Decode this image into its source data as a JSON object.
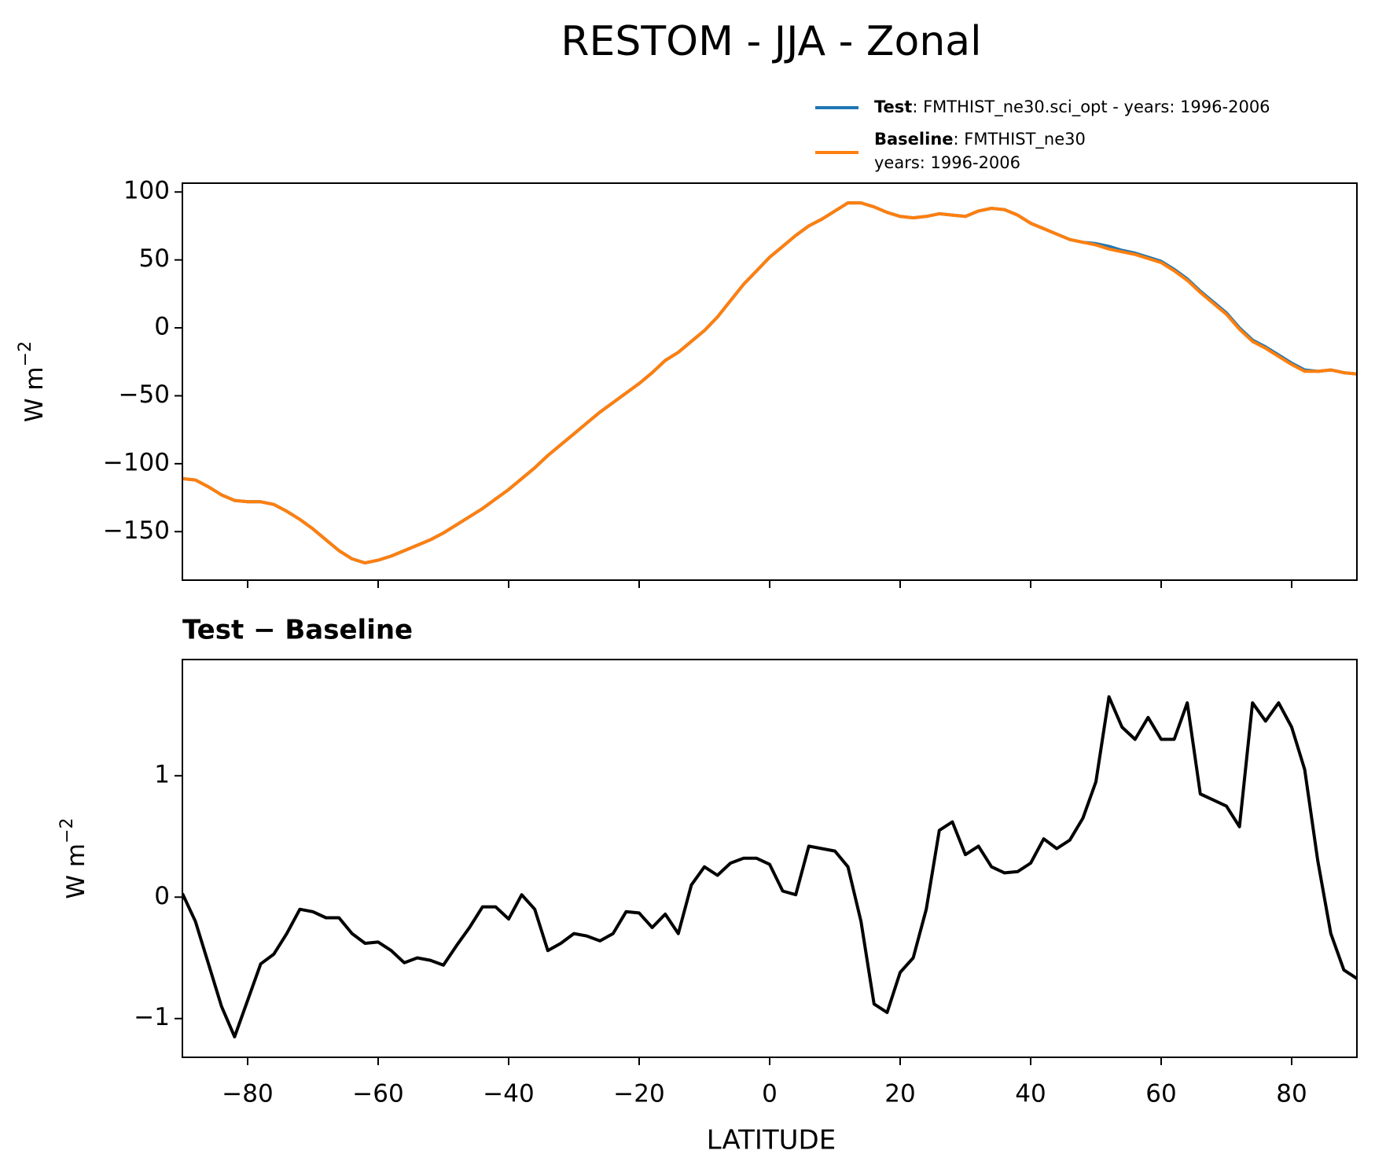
{
  "chart_data": [
    {
      "type": "line",
      "title": "RESTOM - JJA - Zonal",
      "ylabel": "W m",
      "ylabel_exponent": "−2",
      "legend_labels": [
        [
          ": FMTHIST_ne30.sci_opt - years: 1996-2006"
        ],
        [
          ": FMTHIST_ne30",
          "years: 1996-2006"
        ]
      ],
      "x": [
        -90,
        -88,
        -86,
        -84,
        -82,
        -80,
        -78,
        -76,
        -74,
        -72,
        -70,
        -68,
        -66,
        -64,
        -62,
        -60,
        -58,
        -56,
        -54,
        -52,
        -50,
        -48,
        -46,
        -44,
        -42,
        -40,
        -38,
        -36,
        -34,
        -32,
        -30,
        -28,
        -26,
        -24,
        -22,
        -20,
        -18,
        -16,
        -14,
        -12,
        -10,
        -8,
        -6,
        -4,
        -2,
        0,
        2,
        4,
        6,
        8,
        10,
        12,
        14,
        16,
        18,
        20,
        22,
        24,
        26,
        28,
        30,
        32,
        34,
        36,
        38,
        40,
        42,
        44,
        46,
        48,
        50,
        52,
        54,
        56,
        58,
        60,
        62,
        64,
        66,
        68,
        70,
        72,
        74,
        76,
        78,
        80,
        82,
        84,
        86,
        88,
        90
      ],
      "series": [
        {
          "name": "Test",
          "color": "#1f77b4",
          "values": [
            -111,
            -112,
            -117,
            -123,
            -127,
            -128,
            -128,
            -130,
            -135,
            -141,
            -148,
            -156,
            -164,
            -170,
            -173,
            -171,
            -168,
            -164,
            -160,
            -156,
            -151,
            -145,
            -139,
            -133,
            -126,
            -119,
            -111,
            -103,
            -94,
            -86,
            -78,
            -70,
            -62,
            -55,
            -48,
            -41,
            -33,
            -24,
            -18,
            -10,
            -2,
            8,
            20,
            32,
            42,
            52,
            60,
            68,
            75,
            80,
            86,
            92,
            92,
            89,
            85,
            82,
            81,
            82,
            84,
            83,
            82,
            86,
            88,
            87,
            83,
            77,
            73,
            69,
            65,
            63,
            62,
            60,
            57,
            55,
            52,
            49,
            43,
            36,
            27,
            19,
            11,
            0,
            -9,
            -14,
            -20,
            -26,
            -31,
            -32,
            -31,
            -33,
            -34
          ]
        },
        {
          "name": "Baseline",
          "color": "#ff7f0e",
          "values": [
            -111,
            -112,
            -117,
            -123,
            -127,
            -128,
            -128,
            -130,
            -135,
            -141,
            -148,
            -156,
            -164,
            -170,
            -173,
            -171,
            -168,
            -164,
            -160,
            -156,
            -151,
            -145,
            -139,
            -133,
            -126,
            -119,
            -111,
            -103,
            -94,
            -86,
            -78,
            -70,
            -62,
            -55,
            -48,
            -41,
            -33,
            -24,
            -18,
            -10,
            -2,
            8,
            20,
            32,
            42,
            52,
            60,
            68,
            75,
            80,
            86,
            92,
            92,
            89,
            85,
            82,
            81,
            82,
            84,
            83,
            82,
            86,
            88,
            87,
            83,
            77,
            73,
            69,
            65,
            63,
            61,
            58,
            56,
            54,
            51,
            48,
            42,
            35,
            26,
            18,
            10,
            -1,
            -10,
            -15,
            -21,
            -27,
            -32,
            -32,
            -31,
            -33,
            -34
          ]
        }
      ],
      "xlim": [
        -90,
        90
      ],
      "xticks": [
        -80,
        -60,
        -40,
        -20,
        0,
        20,
        40,
        60,
        80
      ],
      "ylim": [
        -185.7,
        106.5
      ],
      "yticks": [
        {
          "value": -150,
          "label": "−150"
        },
        {
          "value": -100,
          "label": "−100"
        },
        {
          "value": -50,
          "label": "−50"
        },
        0,
        50,
        100
      ],
      "legend": "upper right"
    },
    {
      "type": "line",
      "title": "Test − Baseline",
      "ylabel": "W m",
      "ylabel_exponent": "−2",
      "xlabel": "LATITUDE",
      "x": [
        -90,
        -88,
        -86,
        -84,
        -82,
        -80,
        -78,
        -76,
        -74,
        -72,
        -70,
        -68,
        -66,
        -64,
        -62,
        -60,
        -58,
        -56,
        -54,
        -52,
        -50,
        -48,
        -46,
        -44,
        -42,
        -40,
        -38,
        -36,
        -34,
        -32,
        -30,
        -28,
        -26,
        -24,
        -22,
        -20,
        -18,
        -16,
        -14,
        -12,
        -10,
        -8,
        -6,
        -4,
        -2,
        0,
        2,
        4,
        6,
        8,
        10,
        12,
        14,
        16,
        18,
        20,
        22,
        24,
        26,
        28,
        30,
        32,
        34,
        36,
        38,
        40,
        42,
        44,
        46,
        48,
        50,
        52,
        54,
        56,
        58,
        60,
        62,
        64,
        66,
        68,
        70,
        72,
        74,
        76,
        78,
        80,
        82,
        84,
        86,
        88,
        90
      ],
      "color": "#000000",
      "values": [
        0.03,
        -0.2,
        -0.55,
        -0.9,
        -1.15,
        -0.85,
        -0.55,
        -0.47,
        -0.3,
        -0.1,
        -0.12,
        -0.17,
        -0.17,
        -0.3,
        -0.38,
        -0.37,
        -0.44,
        -0.54,
        -0.5,
        -0.52,
        -0.56,
        -0.4,
        -0.25,
        -0.08,
        -0.08,
        -0.18,
        0.02,
        -0.1,
        -0.44,
        -0.38,
        -0.3,
        -0.32,
        -0.36,
        -0.3,
        -0.12,
        -0.13,
        -0.25,
        -0.14,
        -0.3,
        0.1,
        0.25,
        0.18,
        0.28,
        0.32,
        0.32,
        0.27,
        0.05,
        0.02,
        0.42,
        0.4,
        0.38,
        0.25,
        -0.2,
        -0.88,
        -0.95,
        -0.62,
        -0.5,
        -0.1,
        0.55,
        0.62,
        0.35,
        0.42,
        0.25,
        0.2,
        0.21,
        0.28,
        0.48,
        0.4,
        0.47,
        0.65,
        0.95,
        1.65,
        1.4,
        1.3,
        1.48,
        1.3,
        1.3,
        1.6,
        0.85,
        0.8,
        0.75,
        0.58,
        1.6,
        1.45,
        1.6,
        1.4,
        1.05,
        0.3,
        -0.3,
        -0.6,
        -0.67
      ],
      "xlim": [
        -90,
        90
      ],
      "xticks": [
        {
          "value": -80,
          "label": "−80"
        },
        {
          "value": -60,
          "label": "−60"
        },
        {
          "value": -40,
          "label": "−40"
        },
        {
          "value": -20,
          "label": "−20"
        },
        0,
        20,
        40,
        60,
        80
      ],
      "ylim": [
        -1.319,
        1.957
      ],
      "yticks": [
        {
          "value": -1,
          "label": "−1"
        },
        0,
        1
      ]
    }
  ]
}
